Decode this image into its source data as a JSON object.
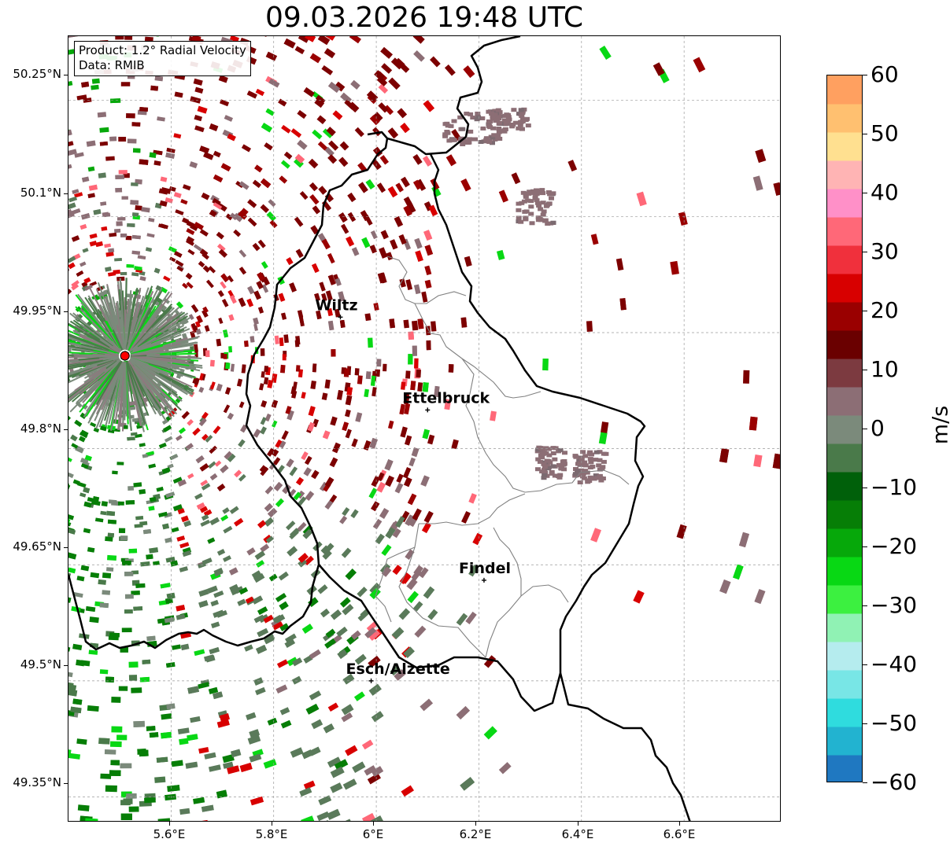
{
  "title": "09.03.2026 19:48 UTC",
  "info": {
    "product": "Product: 1.2° Radial Velocity",
    "source": "Data: RMIB"
  },
  "axes": {
    "lat_labels": [
      "50.25°N",
      "50.1°N",
      "49.95°N",
      "49.8°N",
      "49.65°N",
      "49.5°N",
      "49.35°N"
    ],
    "lon_labels": [
      "5.6°E",
      "5.8°E",
      "6°E",
      "6.2°E",
      "6.4°E",
      "6.6°E"
    ]
  },
  "cities": [
    {
      "name": "Wiltz",
      "lon": 5.93,
      "lat": 49.97
    },
    {
      "name": "Ettelbruck",
      "lon": 6.1,
      "lat": 49.85
    },
    {
      "name": "Findel",
      "lon": 6.21,
      "lat": 49.63
    },
    {
      "name": "Esch/Alzette",
      "lon": 5.99,
      "lat": 49.5
    }
  ],
  "radar_site": {
    "lon": 5.51,
    "lat": 49.92
  },
  "colorbar": {
    "unit": "m/s",
    "ticks": [
      "60",
      "50",
      "40",
      "30",
      "20",
      "10",
      "0",
      "−10",
      "−20",
      "−30",
      "−40",
      "−50",
      "−60"
    ],
    "min": -60,
    "max": 60,
    "colors": [
      "#1f78c1",
      "#22b3d0",
      "#2fdcde",
      "#78e6e6",
      "#b5ecee",
      "#90f2b4",
      "#3cf040",
      "#08d814",
      "#06a80a",
      "#067e06",
      "#00600a",
      "#4a7a4a",
      "#7b8a7b",
      "#8c6e75",
      "#7c3a40",
      "#6a0000",
      "#9a0000",
      "#d80000",
      "#f0303c",
      "#ff6878",
      "#ff90c8",
      "#ffb4b4",
      "#ffe090",
      "#ffc070",
      "#ffa060"
    ]
  },
  "map_extent": {
    "lon_min": 5.4,
    "lon_max": 6.79,
    "lat_min": 49.317,
    "lat_max": 50.333
  },
  "colors": {
    "border": "#000000",
    "admin": "#808080",
    "radar_marker": "#ff0000"
  }
}
